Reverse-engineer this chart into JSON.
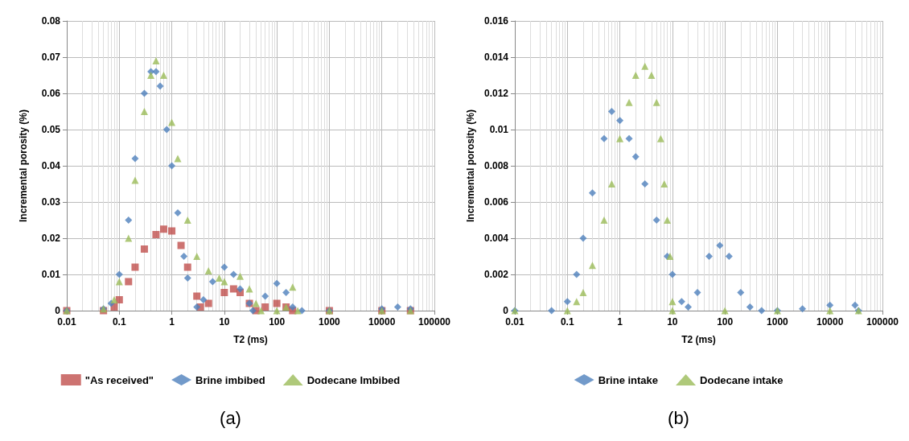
{
  "chart_data": [
    {
      "type": "scatter",
      "xlabel": "T2 (ms)",
      "ylabel": "Incremental porosity (%)",
      "log": "x",
      "grid": true,
      "legend": "bottom",
      "annotations": [
        "(a)"
      ],
      "xlim": [
        0.01,
        100000
      ],
      "xticks": [
        0.01,
        0.1,
        1,
        10,
        100,
        1000,
        10000,
        100000
      ],
      "ylim": [
        0,
        0.08
      ],
      "yticks": [
        0,
        0.01,
        0.02,
        0.03,
        0.04,
        0.05,
        0.06,
        0.07,
        0.08
      ],
      "series": [
        {
          "name": "\"As received\"",
          "color": "#c0504d",
          "marker": "square",
          "x": [
            0.01,
            0.05,
            0.08,
            0.1,
            0.15,
            0.2,
            0.3,
            0.5,
            0.7,
            1,
            1.5,
            2,
            3,
            3.5,
            5,
            10,
            15,
            20,
            30,
            40,
            60,
            100,
            150,
            200,
            1000,
            10000,
            35000
          ],
          "values": [
            0,
            0,
            0.001,
            0.003,
            0.008,
            0.012,
            0.017,
            0.021,
            0.0225,
            0.022,
            0.018,
            0.012,
            0.004,
            0.001,
            0.002,
            0.005,
            0.006,
            0.005,
            0.002,
            0,
            0.001,
            0.002,
            0.001,
            0,
            0,
            0,
            0
          ]
        },
        {
          "name": "Brine imbibed",
          "color": "#4f81bd",
          "marker": "diamond",
          "x": [
            0.01,
            0.05,
            0.07,
            0.1,
            0.15,
            0.2,
            0.3,
            0.4,
            0.5,
            0.6,
            0.8,
            1,
            1.3,
            1.7,
            2,
            3,
            4,
            6,
            10,
            15,
            20,
            30,
            35,
            60,
            100,
            150,
            200,
            300,
            1000,
            10000,
            20000,
            35000
          ],
          "values": [
            0,
            0.0005,
            0.002,
            0.01,
            0.025,
            0.042,
            0.06,
            0.066,
            0.066,
            0.062,
            0.05,
            0.04,
            0.027,
            0.015,
            0.009,
            0.001,
            0.003,
            0.008,
            0.012,
            0.01,
            0.006,
            0.002,
            0,
            0.004,
            0.0075,
            0.005,
            0.001,
            0,
            0,
            0.0005,
            0.001,
            0.0005
          ]
        },
        {
          "name": "Dodecane Imbibed",
          "color": "#9bbb59",
          "marker": "triangle",
          "x": [
            0.01,
            0.05,
            0.08,
            0.1,
            0.15,
            0.2,
            0.3,
            0.4,
            0.5,
            0.7,
            1,
            1.3,
            2,
            3,
            5,
            8,
            10,
            20,
            30,
            40,
            50,
            100,
            150,
            200,
            250,
            1000,
            10000,
            35000
          ],
          "values": [
            0,
            0.0005,
            0.003,
            0.008,
            0.02,
            0.036,
            0.055,
            0.065,
            0.069,
            0.065,
            0.052,
            0.042,
            0.025,
            0.015,
            0.011,
            0.009,
            0.008,
            0.0095,
            0.006,
            0.002,
            0,
            0,
            0.001,
            0.0065,
            0,
            0,
            0,
            0
          ]
        }
      ]
    },
    {
      "type": "scatter",
      "xlabel": "T2 (ms)",
      "ylabel": "Incremental porosity (%)",
      "log": "x",
      "grid": true,
      "legend": "bottom",
      "annotations": [
        "(b)"
      ],
      "xlim": [
        0.01,
        100000
      ],
      "xticks": [
        0.01,
        0.1,
        1,
        10,
        100,
        1000,
        10000,
        100000
      ],
      "ylim": [
        0,
        0.016
      ],
      "yticks": [
        0,
        0.002,
        0.004,
        0.006,
        0.008,
        0.01,
        0.012,
        0.014,
        0.016
      ],
      "series": [
        {
          "name": "Brine intake",
          "color": "#4f81bd",
          "marker": "diamond",
          "x": [
            0.01,
            0.05,
            0.1,
            0.15,
            0.2,
            0.3,
            0.5,
            0.7,
            1,
            1.5,
            2,
            3,
            5,
            8,
            10,
            15,
            20,
            30,
            50,
            80,
            120,
            200,
            300,
            500,
            1000,
            3000,
            10000,
            30000,
            35000
          ],
          "values": [
            0,
            0,
            0.0005,
            0.002,
            0.004,
            0.0065,
            0.0095,
            0.011,
            0.0105,
            0.0095,
            0.0085,
            0.007,
            0.005,
            0.003,
            0.002,
            0.0005,
            0.0002,
            0.001,
            0.003,
            0.0036,
            0.003,
            0.001,
            0.0002,
            0,
            0,
            0.0001,
            0.0003,
            0.0003,
            0
          ]
        },
        {
          "name": "Dodecane intake",
          "color": "#9bbb59",
          "marker": "triangle",
          "x": [
            0.01,
            0.1,
            0.15,
            0.2,
            0.3,
            0.5,
            0.7,
            1,
            1.5,
            2,
            3,
            4,
            5,
            6,
            7,
            8,
            9,
            10,
            10,
            100,
            1000,
            10000,
            35000
          ],
          "values": [
            0,
            0,
            0.0005,
            0.001,
            0.0025,
            0.005,
            0.007,
            0.0095,
            0.0115,
            0.013,
            0.0135,
            0.013,
            0.0115,
            0.0095,
            0.007,
            0.005,
            0.003,
            0.0005,
            0,
            0,
            0,
            0,
            0
          ]
        }
      ]
    }
  ]
}
